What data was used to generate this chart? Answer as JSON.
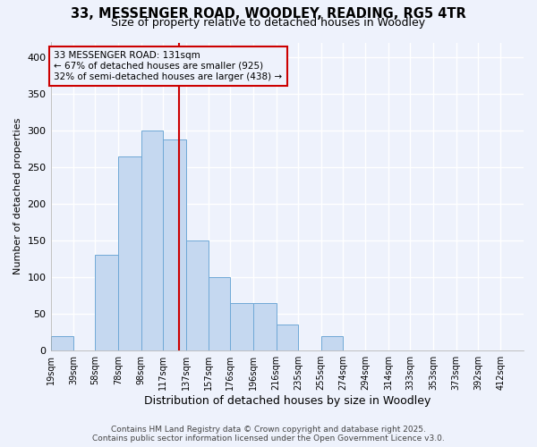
{
  "title_line1": "33, MESSENGER ROAD, WOODLEY, READING, RG5 4TR",
  "title_line2": "Size of property relative to detached houses in Woodley",
  "xlabel": "Distribution of detached houses by size in Woodley",
  "ylabel": "Number of detached properties",
  "bin_labels": [
    "19sqm",
    "39sqm",
    "58sqm",
    "78sqm",
    "98sqm",
    "117sqm",
    "137sqm",
    "157sqm",
    "176sqm",
    "196sqm",
    "216sqm",
    "235sqm",
    "255sqm",
    "274sqm",
    "294sqm",
    "314sqm",
    "333sqm",
    "353sqm",
    "373sqm",
    "392sqm",
    "412sqm"
  ],
  "bin_left": [
    19,
    39,
    58,
    78,
    98,
    117,
    137,
    157,
    176,
    196,
    216,
    235,
    255,
    274,
    294,
    314,
    333,
    353,
    373,
    392
  ],
  "bin_widths": [
    20,
    19,
    20,
    20,
    19,
    20,
    20,
    19,
    20,
    20,
    19,
    20,
    19,
    20,
    20,
    19,
    20,
    20,
    19,
    20
  ],
  "bar_heights": [
    20,
    0,
    130,
    265,
    300,
    288,
    150,
    100,
    65,
    65,
    35,
    0,
    20,
    0,
    0,
    0,
    0,
    0,
    0,
    0
  ],
  "bar_color": "#C5D8F0",
  "bar_edge_color": "#6FA8D6",
  "property_size": 131,
  "vline_color": "#CC0000",
  "annotation_text": "33 MESSENGER ROAD: 131sqm\n← 67% of detached houses are smaller (925)\n32% of semi-detached houses are larger (438) →",
  "annotation_box_edge": "#CC0000",
  "ylim": [
    0,
    420
  ],
  "yticks": [
    0,
    50,
    100,
    150,
    200,
    250,
    300,
    350,
    400
  ],
  "footer_line1": "Contains HM Land Registry data © Crown copyright and database right 2025.",
  "footer_line2": "Contains public sector information licensed under the Open Government Licence v3.0.",
  "bg_color": "#EEF2FC",
  "grid_color": "#FFFFFF"
}
